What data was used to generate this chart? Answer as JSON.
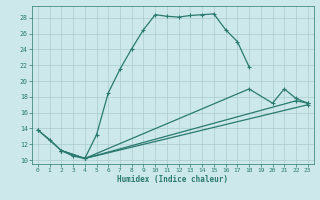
{
  "xlabel": "Humidex (Indice chaleur)",
  "bg_color": "#cce8ea",
  "grid_color": "#aacccc",
  "line_color": "#2a7a6f",
  "xlim": [
    -0.5,
    23.5
  ],
  "ylim": [
    9.5,
    29.5
  ],
  "xticks": [
    0,
    1,
    2,
    3,
    4,
    5,
    6,
    7,
    8,
    9,
    10,
    11,
    12,
    13,
    14,
    15,
    16,
    17,
    18,
    19,
    20,
    21,
    22,
    23
  ],
  "yticks": [
    10,
    12,
    14,
    16,
    18,
    20,
    22,
    24,
    26,
    28
  ],
  "line1_x": [
    0,
    1,
    2,
    3,
    4,
    5,
    6,
    7,
    8,
    9,
    10,
    11,
    12,
    13,
    14,
    15,
    16,
    17,
    18
  ],
  "line1_y": [
    13.8,
    12.6,
    11.2,
    10.5,
    10.2,
    13.2,
    18.5,
    21.5,
    24.1,
    26.5,
    28.4,
    28.2,
    28.1,
    28.3,
    28.4,
    28.5,
    26.5,
    25.0,
    21.8
  ],
  "line2_x": [
    2,
    4,
    18,
    20,
    21,
    22,
    23
  ],
  "line2_y": [
    11.2,
    10.2,
    19.0,
    17.2,
    19.0,
    17.8,
    17.2
  ],
  "line3_x": [
    0,
    2,
    4,
    22,
    23
  ],
  "line3_y": [
    13.8,
    11.2,
    10.2,
    17.5,
    17.2
  ],
  "line4_x": [
    2,
    4,
    23
  ],
  "line4_y": [
    11.2,
    10.2,
    17.0
  ]
}
